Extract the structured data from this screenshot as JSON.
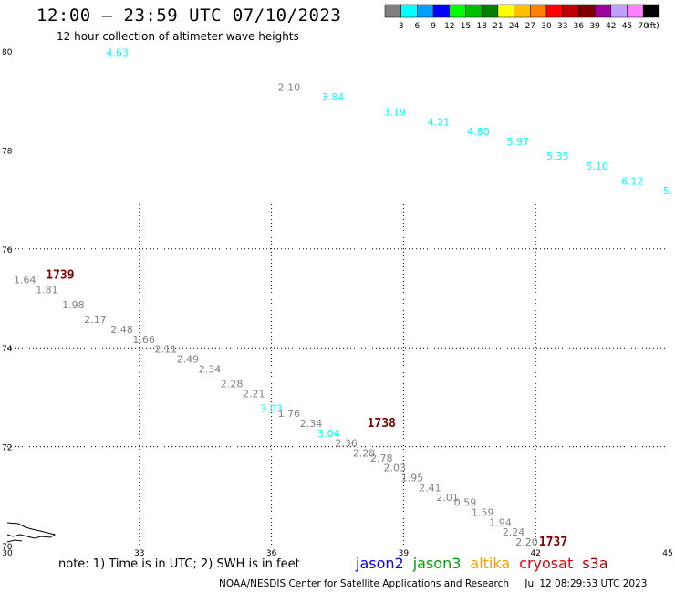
{
  "title": "12:00 – 23:59 UTC 07/10/2023",
  "subtitle": "12 hour collection of altimeter wave heights",
  "colorbar": {
    "colors": [
      "#808080",
      "#00ffff",
      "#00a0ff",
      "#0000ff",
      "#00ff00",
      "#00c000",
      "#008000",
      "#ffff00",
      "#ffc000",
      "#ff8000",
      "#ff0000",
      "#c00000",
      "#800000",
      "#a000a0",
      "#c0a0ff",
      "#ff80ff",
      "#000000"
    ],
    "labels": [
      "3",
      "6",
      "9",
      "12",
      "15",
      "18",
      "21",
      "24",
      "27",
      "30",
      "33",
      "36",
      "39",
      "42",
      "45",
      "70"
    ],
    "unit": "(ft)"
  },
  "chart_data": {
    "type": "scatter",
    "title": "12:00 – 23:59 UTC 07/10/2023",
    "subtitle": "12 hour collection of altimeter wave heights",
    "xlabel": "",
    "ylabel": "",
    "xlim": [
      30,
      45
    ],
    "ylim": [
      70,
      80
    ],
    "x_ticks": [
      "30",
      "33",
      "36",
      "39",
      "42",
      "45"
    ],
    "y_ticks": [
      "70",
      "72",
      "74",
      "76",
      "78",
      "80"
    ],
    "grid": true,
    "legend": "bottom",
    "wave_heights": [
      {
        "x": 32.5,
        "y": 79.9,
        "label": "4.63",
        "color": "#00ffff"
      },
      {
        "x": 36.4,
        "y": 79.2,
        "label": "2.10",
        "color": "#808080"
      },
      {
        "x": 37.4,
        "y": 79.0,
        "label": "3.84",
        "color": "#00ffff"
      },
      {
        "x": 38.8,
        "y": 78.7,
        "label": "3.19",
        "color": "#00ffff"
      },
      {
        "x": 39.8,
        "y": 78.5,
        "label": "4.21",
        "color": "#00ffff"
      },
      {
        "x": 40.7,
        "y": 78.3,
        "label": "4.80",
        "color": "#00ffff"
      },
      {
        "x": 41.6,
        "y": 78.1,
        "label": "5.97",
        "color": "#00ffff"
      },
      {
        "x": 42.5,
        "y": 77.8,
        "label": "5.35",
        "color": "#00ffff"
      },
      {
        "x": 43.4,
        "y": 77.6,
        "label": "5.10",
        "color": "#00ffff"
      },
      {
        "x": 44.2,
        "y": 77.3,
        "label": "6.12",
        "color": "#00ffff"
      },
      {
        "x": 45.0,
        "y": 77.1,
        "label": "5.",
        "color": "#00ffff"
      },
      {
        "x": 30.4,
        "y": 75.3,
        "label": "1.64",
        "color": "#808080"
      },
      {
        "x": 30.9,
        "y": 75.1,
        "label": "1.81",
        "color": "#808080"
      },
      {
        "x": 31.5,
        "y": 74.8,
        "label": "1.98",
        "color": "#808080"
      },
      {
        "x": 32.0,
        "y": 74.5,
        "label": "2.17",
        "color": "#808080"
      },
      {
        "x": 32.6,
        "y": 74.3,
        "label": "2.48",
        "color": "#808080"
      },
      {
        "x": 33.1,
        "y": 74.1,
        "label": "1.66",
        "color": "#808080"
      },
      {
        "x": 33.6,
        "y": 73.9,
        "label": "2.11",
        "color": "#808080"
      },
      {
        "x": 34.1,
        "y": 73.7,
        "label": "2.49",
        "color": "#808080"
      },
      {
        "x": 34.6,
        "y": 73.5,
        "label": "2.34",
        "color": "#808080"
      },
      {
        "x": 35.1,
        "y": 73.2,
        "label": "2.28",
        "color": "#808080"
      },
      {
        "x": 35.6,
        "y": 73.0,
        "label": "2.21",
        "color": "#808080"
      },
      {
        "x": 36.0,
        "y": 72.7,
        "label": "3.03",
        "color": "#00ffff"
      },
      {
        "x": 36.4,
        "y": 72.6,
        "label": "1.76",
        "color": "#808080"
      },
      {
        "x": 36.9,
        "y": 72.4,
        "label": "2.34",
        "color": "#808080"
      },
      {
        "x": 37.3,
        "y": 72.2,
        "label": "3.04",
        "color": "#00ffff"
      },
      {
        "x": 37.7,
        "y": 72.0,
        "label": "2.36",
        "color": "#808080"
      },
      {
        "x": 38.1,
        "y": 71.8,
        "label": "2.28",
        "color": "#808080"
      },
      {
        "x": 38.5,
        "y": 71.7,
        "label": "2.78",
        "color": "#808080"
      },
      {
        "x": 38.8,
        "y": 71.5,
        "label": "2.03",
        "color": "#808080"
      },
      {
        "x": 39.2,
        "y": 71.3,
        "label": "1.95",
        "color": "#808080"
      },
      {
        "x": 39.6,
        "y": 71.1,
        "label": "2.41",
        "color": "#808080"
      },
      {
        "x": 40.0,
        "y": 70.9,
        "label": "2.01",
        "color": "#808080"
      },
      {
        "x": 40.4,
        "y": 70.8,
        "label": "0.59",
        "color": "#808080"
      },
      {
        "x": 40.8,
        "y": 70.6,
        "label": "1.59",
        "color": "#808080"
      },
      {
        "x": 41.2,
        "y": 70.4,
        "label": "1.94",
        "color": "#808080"
      },
      {
        "x": 41.5,
        "y": 70.2,
        "label": "2.24",
        "color": "#808080"
      },
      {
        "x": 41.8,
        "y": 70.0,
        "label": "2.20",
        "color": "#808080"
      }
    ],
    "time_stamps": [
      {
        "x": 31.2,
        "y": 75.4,
        "label": "1739",
        "color": "#800000"
      },
      {
        "x": 38.5,
        "y": 72.4,
        "label": "1738",
        "color": "#800000"
      },
      {
        "x": 42.4,
        "y": 70.0,
        "label": "1737",
        "color": "#800000"
      }
    ]
  },
  "note": "note:  1) Time is in UTC; 2) SWH is in feet",
  "satellites": [
    {
      "name": "jason2",
      "color": "#0000ff"
    },
    {
      "name": "jason3",
      "color": "#00a000"
    },
    {
      "name": "altika",
      "color": "#ff9900"
    },
    {
      "name": "cryosat",
      "color": "#e00000"
    },
    {
      "name": "s3a",
      "color": "#b00000"
    }
  ],
  "footer": {
    "center": "NOAA/NESDIS Center for Satellite Applications and Research",
    "timestamp": "Jul 12 08:29:53 UTC 2023"
  }
}
